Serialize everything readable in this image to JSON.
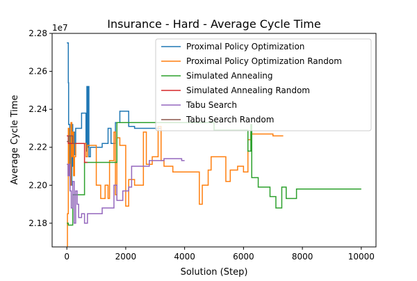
{
  "chart_data": {
    "type": "line",
    "title": "Insurance - Hard - Average Cycle Time",
    "xlabel": "Solution (Step)",
    "ylabel": "Average Cycle Time",
    "y_offset_text": "1e7",
    "y_scale_factor": 10000000,
    "xlim": [
      -500,
      10500
    ],
    "ylim": [
      2.1675,
      2.28
    ],
    "x_ticks": [
      0,
      2000,
      4000,
      6000,
      8000,
      10000
    ],
    "x_tick_labels": [
      "0",
      "2000",
      "4000",
      "6000",
      "8000",
      "10000"
    ],
    "y_ticks": [
      2.18,
      2.2,
      2.22,
      2.24,
      2.26,
      2.28
    ],
    "y_tick_labels": [
      "2.18",
      "2.20",
      "2.22",
      "2.24",
      "2.26",
      "2.28"
    ],
    "grid": false,
    "legend_position": "top-right",
    "series": [
      {
        "name": "Proximal Policy Optimization",
        "color": "#1f77b4",
        "points": [
          [
            0,
            2.275
          ],
          [
            50,
            2.275
          ],
          [
            50,
            2.254
          ],
          [
            60,
            2.254
          ],
          [
            60,
            2.232
          ],
          [
            100,
            2.232
          ],
          [
            100,
            2.209
          ],
          [
            120,
            2.209
          ],
          [
            120,
            2.226
          ],
          [
            150,
            2.226
          ],
          [
            150,
            2.2
          ],
          [
            170,
            2.2
          ],
          [
            170,
            2.232
          ],
          [
            200,
            2.232
          ],
          [
            200,
            2.21
          ],
          [
            230,
            2.21
          ],
          [
            230,
            2.228
          ],
          [
            260,
            2.228
          ],
          [
            260,
            2.216
          ],
          [
            300,
            2.216
          ],
          [
            300,
            2.23
          ],
          [
            500,
            2.23
          ],
          [
            500,
            2.238
          ],
          [
            650,
            2.238
          ],
          [
            650,
            2.218
          ],
          [
            680,
            2.218
          ],
          [
            680,
            2.252
          ],
          [
            700,
            2.252
          ],
          [
            700,
            2.22
          ],
          [
            720,
            2.22
          ],
          [
            720,
            2.252
          ],
          [
            750,
            2.252
          ],
          [
            750,
            2.215
          ],
          [
            800,
            2.215
          ],
          [
            800,
            2.22
          ],
          [
            1200,
            2.22
          ],
          [
            1200,
            2.222
          ],
          [
            1400,
            2.222
          ],
          [
            1400,
            2.23
          ],
          [
            1500,
            2.23
          ],
          [
            1500,
            2.222
          ],
          [
            1650,
            2.222
          ],
          [
            1650,
            2.233
          ],
          [
            1800,
            2.233
          ],
          [
            1800,
            2.239
          ],
          [
            2100,
            2.239
          ],
          [
            2100,
            2.231
          ],
          [
            2300,
            2.231
          ],
          [
            2300,
            2.23
          ],
          [
            3200,
            2.23
          ]
        ]
      },
      {
        "name": "Proximal Policy Optimization Random",
        "color": "#ff7f0e",
        "points": [
          [
            0,
            2.168
          ],
          [
            20,
            2.168
          ],
          [
            20,
            2.185
          ],
          [
            50,
            2.185
          ],
          [
            50,
            2.23
          ],
          [
            80,
            2.23
          ],
          [
            80,
            2.21
          ],
          [
            110,
            2.21
          ],
          [
            110,
            2.2
          ],
          [
            140,
            2.2
          ],
          [
            140,
            2.233
          ],
          [
            170,
            2.233
          ],
          [
            170,
            2.215
          ],
          [
            200,
            2.215
          ],
          [
            200,
            2.228
          ],
          [
            230,
            2.228
          ],
          [
            230,
            2.205
          ],
          [
            260,
            2.205
          ],
          [
            260,
            2.215
          ],
          [
            300,
            2.215
          ],
          [
            300,
            2.222
          ],
          [
            650,
            2.222
          ],
          [
            650,
            2.215
          ],
          [
            700,
            2.215
          ],
          [
            700,
            2.221
          ],
          [
            1000,
            2.221
          ],
          [
            1000,
            2.2
          ],
          [
            1150,
            2.2
          ],
          [
            1150,
            2.193
          ],
          [
            1300,
            2.193
          ],
          [
            1300,
            2.2
          ],
          [
            1400,
            2.2
          ],
          [
            1400,
            2.193
          ],
          [
            1450,
            2.193
          ],
          [
            1450,
            2.213
          ],
          [
            1600,
            2.213
          ],
          [
            1600,
            2.228
          ],
          [
            1650,
            2.228
          ],
          [
            1650,
            2.195
          ],
          [
            1700,
            2.195
          ],
          [
            1700,
            2.225
          ],
          [
            1800,
            2.225
          ],
          [
            1800,
            2.221
          ],
          [
            2000,
            2.221
          ],
          [
            2000,
            2.189
          ],
          [
            2100,
            2.189
          ],
          [
            2100,
            2.203
          ],
          [
            2300,
            2.203
          ],
          [
            2300,
            2.2
          ],
          [
            2600,
            2.2
          ],
          [
            2600,
            2.228
          ],
          [
            2700,
            2.228
          ],
          [
            2700,
            2.211
          ],
          [
            2900,
            2.211
          ],
          [
            2900,
            2.215
          ],
          [
            3100,
            2.215
          ],
          [
            3100,
            2.231
          ],
          [
            3200,
            2.231
          ],
          [
            3200,
            2.213
          ],
          [
            3300,
            2.213
          ],
          [
            3300,
            2.21
          ],
          [
            3600,
            2.21
          ],
          [
            3600,
            2.207
          ],
          [
            4500,
            2.207
          ],
          [
            4500,
            2.19
          ],
          [
            4600,
            2.19
          ],
          [
            4600,
            2.2
          ],
          [
            4800,
            2.2
          ],
          [
            4800,
            2.208
          ],
          [
            4900,
            2.208
          ],
          [
            4900,
            2.215
          ],
          [
            5400,
            2.215
          ],
          [
            5400,
            2.202
          ],
          [
            5550,
            2.202
          ],
          [
            5550,
            2.208
          ],
          [
            5800,
            2.208
          ],
          [
            5800,
            2.21
          ],
          [
            6000,
            2.21
          ],
          [
            6000,
            2.207
          ],
          [
            6150,
            2.207
          ],
          [
            6150,
            2.224
          ],
          [
            6250,
            2.224
          ],
          [
            6250,
            2.227
          ],
          [
            7000,
            2.227
          ],
          [
            7000,
            2.226
          ],
          [
            7350,
            2.226
          ]
        ]
      },
      {
        "name": "Simulated Annealing",
        "color": "#2ca02c",
        "points": [
          [
            0,
            2.18
          ],
          [
            50,
            2.18
          ],
          [
            50,
            2.179
          ],
          [
            200,
            2.179
          ],
          [
            200,
            2.195
          ],
          [
            600,
            2.195
          ],
          [
            600,
            2.212
          ],
          [
            1700,
            2.212
          ],
          [
            1700,
            2.233
          ],
          [
            3500,
            2.233
          ],
          [
            3500,
            2.233
          ],
          [
            5000,
            2.233
          ],
          [
            5000,
            2.229
          ],
          [
            6150,
            2.229
          ],
          [
            6150,
            2.218
          ],
          [
            6250,
            2.218
          ],
          [
            6250,
            2.232
          ],
          [
            6280,
            2.232
          ],
          [
            6280,
            2.204
          ],
          [
            6500,
            2.204
          ],
          [
            6500,
            2.199
          ],
          [
            6900,
            2.199
          ],
          [
            6900,
            2.194
          ],
          [
            7100,
            2.194
          ],
          [
            7100,
            2.188
          ],
          [
            7300,
            2.188
          ],
          [
            7300,
            2.199
          ],
          [
            7450,
            2.199
          ],
          [
            7450,
            2.193
          ],
          [
            7800,
            2.193
          ],
          [
            7800,
            2.198
          ],
          [
            10000,
            2.198
          ]
        ]
      },
      {
        "name": "Simulated Annealing Random",
        "color": "#d62728",
        "points": [
          [
            0,
            2.226
          ],
          [
            50,
            2.226
          ],
          [
            50,
            2.222
          ],
          [
            600,
            2.222
          ],
          [
            600,
            2.212
          ],
          [
            700,
            2.212
          ]
        ]
      },
      {
        "name": "Tabu Search",
        "color": "#9467bd",
        "points": [
          [
            0,
            2.211
          ],
          [
            40,
            2.211
          ],
          [
            40,
            2.205
          ],
          [
            80,
            2.205
          ],
          [
            80,
            2.211
          ],
          [
            110,
            2.211
          ],
          [
            110,
            2.197
          ],
          [
            150,
            2.197
          ],
          [
            150,
            2.188
          ],
          [
            200,
            2.188
          ],
          [
            200,
            2.202
          ],
          [
            250,
            2.202
          ],
          [
            250,
            2.18
          ],
          [
            300,
            2.18
          ],
          [
            300,
            2.197
          ],
          [
            350,
            2.197
          ],
          [
            350,
            2.19
          ],
          [
            400,
            2.19
          ],
          [
            400,
            2.183
          ],
          [
            500,
            2.183
          ],
          [
            500,
            2.185
          ],
          [
            600,
            2.185
          ],
          [
            600,
            2.18
          ],
          [
            700,
            2.18
          ],
          [
            700,
            2.185
          ],
          [
            1200,
            2.185
          ],
          [
            1200,
            2.188
          ],
          [
            1600,
            2.188
          ],
          [
            1600,
            2.2
          ],
          [
            1700,
            2.2
          ],
          [
            1700,
            2.192
          ],
          [
            1900,
            2.192
          ],
          [
            1900,
            2.197
          ],
          [
            2100,
            2.197
          ],
          [
            2100,
            2.199
          ],
          [
            2200,
            2.199
          ],
          [
            2200,
            2.21
          ],
          [
            2800,
            2.21
          ],
          [
            2800,
            2.213
          ],
          [
            3300,
            2.213
          ],
          [
            3300,
            2.214
          ],
          [
            3900,
            2.214
          ],
          [
            3900,
            2.213
          ],
          [
            4000,
            2.213
          ]
        ]
      },
      {
        "name": "Tabu Search Random",
        "color": "#8c564b",
        "points": [
          [
            0,
            2.223
          ],
          [
            60,
            2.223
          ],
          [
            60,
            2.226
          ],
          [
            200,
            2.226
          ],
          [
            200,
            2.222
          ],
          [
            300,
            2.222
          ]
        ]
      }
    ]
  }
}
